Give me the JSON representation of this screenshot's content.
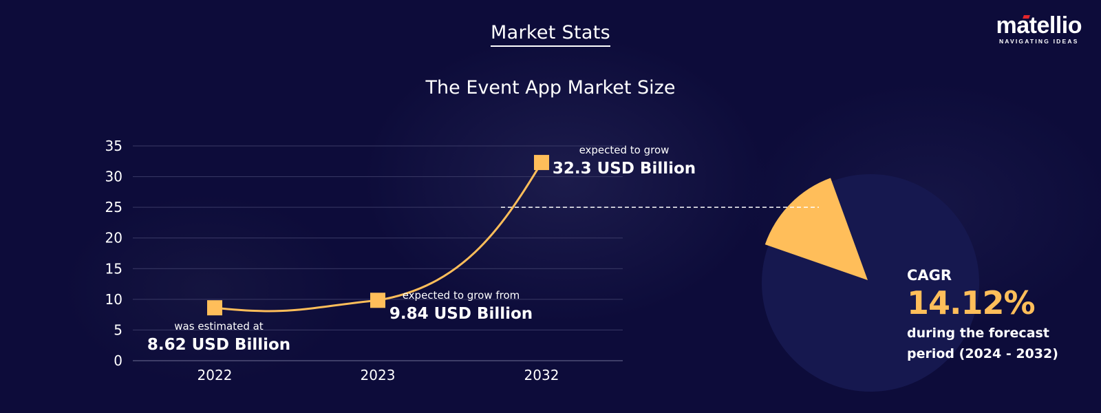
{
  "header": {
    "section_title": "Market Stats",
    "logo_name": "matellio",
    "logo_tagline": "NAVIGATING IDEAS"
  },
  "colors": {
    "background": "#0d0c3a",
    "accent": "#ffbe5a",
    "pie_base": "#16184f",
    "logo_mark": "#e2252b"
  },
  "chart_data": {
    "type": "line",
    "title": "The Event App Market Size",
    "categories": [
      "2022",
      "2023",
      "2032"
    ],
    "series": [
      {
        "values": [
          8.62,
          9.84,
          32.3
        ]
      }
    ],
    "ylim": [
      0,
      35
    ],
    "yticks": [
      0,
      5,
      10,
      15,
      20,
      25,
      30,
      35
    ],
    "grid": true,
    "annotations": [
      {
        "category": "2022",
        "caption": "was estimated at",
        "value_text": "8.62 USD Billion"
      },
      {
        "category": "2023",
        "caption": "expected to grow from",
        "value_text": "9.84 USD Billion"
      },
      {
        "category": "2032",
        "caption": "expected to grow",
        "value_text": "32.3 USD Billion"
      }
    ]
  },
  "cagr": {
    "label": "CAGR",
    "value": "14.12%",
    "percent": 14.12,
    "description_line1": "during the forecast",
    "description_line2": "period (2024 - 2032)"
  }
}
